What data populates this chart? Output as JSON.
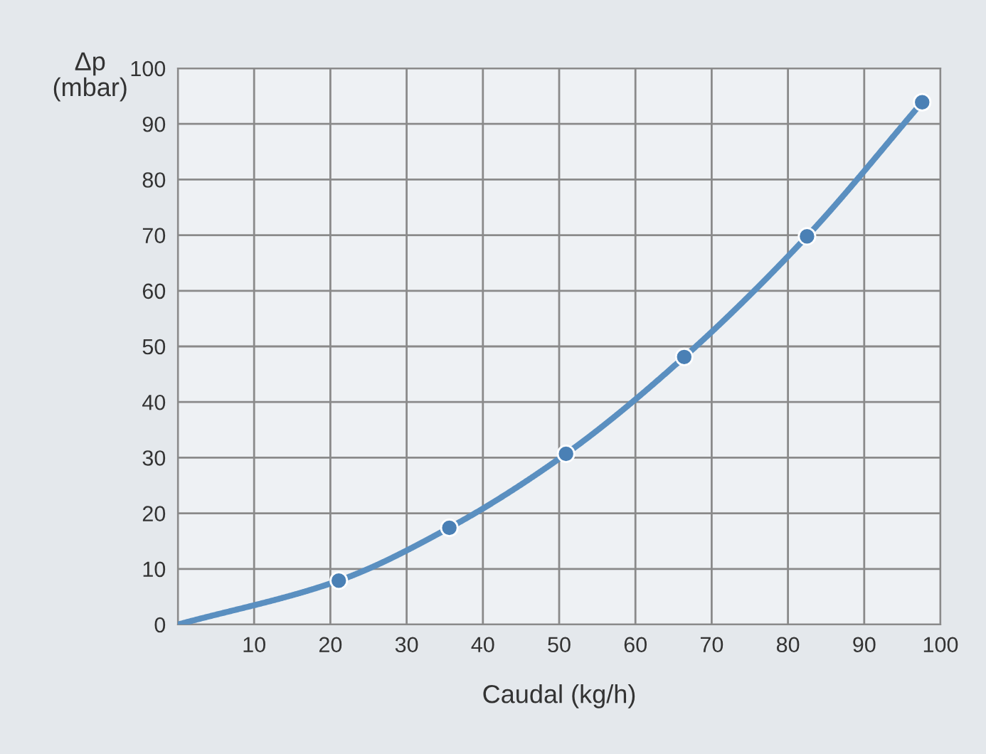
{
  "chart_data": {
    "type": "line",
    "xlabel": "Caudal (kg/h)",
    "ylabel": "Δp\n(mbar)",
    "series": [
      {
        "color": "#5a8fc0",
        "x": [
          0,
          21.1,
          35.6,
          50.9,
          66.4,
          82.5,
          97.6
        ],
        "values": [
          0,
          7.9,
          17.4,
          30.7,
          48.1,
          69.8,
          93.9
        ],
        "marker": "none"
      },
      {
        "type": "scatter",
        "color": "#4a80b5",
        "x": [
          21.1,
          35.6,
          50.9,
          66.4,
          82.5,
          97.6
        ],
        "values": [
          7.9,
          17.4,
          30.7,
          48.1,
          69.8,
          93.9
        ],
        "marker": "circle"
      }
    ],
    "xlim": [
      0,
      100
    ],
    "ylim": [
      0,
      100
    ],
    "xticks": [
      {
        "value": 0,
        "label": null
      },
      10,
      20,
      30,
      40,
      50,
      60,
      70,
      80,
      90,
      100
    ],
    "yticks": [
      0,
      10,
      20,
      30,
      40,
      50,
      60,
      70,
      80,
      90,
      100
    ],
    "grid": true,
    "legend": false
  }
}
